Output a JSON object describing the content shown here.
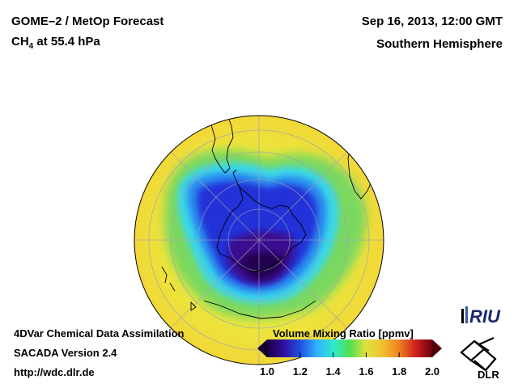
{
  "header": {
    "title_line1": "GOME–2 / MetOp Forecast",
    "title_species": "CH",
    "title_sub": "4",
    "title_rest": " at 55.4 hPa",
    "date": "Sep 16, 2013, 12:00 GMT",
    "region": "Southern Hemisphere"
  },
  "footer": {
    "line1": "4DVar Chemical Data Assimilation",
    "line2": "SACADA Version 2.4",
    "line3": "http://wdc.dlr.de"
  },
  "colorbar": {
    "title": "Volume Mixing Ratio [ppmv]",
    "ticks": [
      "1.0",
      "1.2",
      "1.4",
      "1.6",
      "1.8",
      "2.0"
    ],
    "min": 1.0,
    "max": 2.0,
    "colors": [
      "#1a0040",
      "#3010a0",
      "#2050e0",
      "#30b0ff",
      "#30e8d0",
      "#50e050",
      "#e0e040",
      "#f0c030",
      "#f08020",
      "#d02020",
      "#700010"
    ]
  },
  "logos": {
    "riu": "RIU",
    "dlr": "DLR"
  },
  "map": {
    "projection": "orthographic",
    "center": "South Pole",
    "background_color": "#f0e040"
  }
}
